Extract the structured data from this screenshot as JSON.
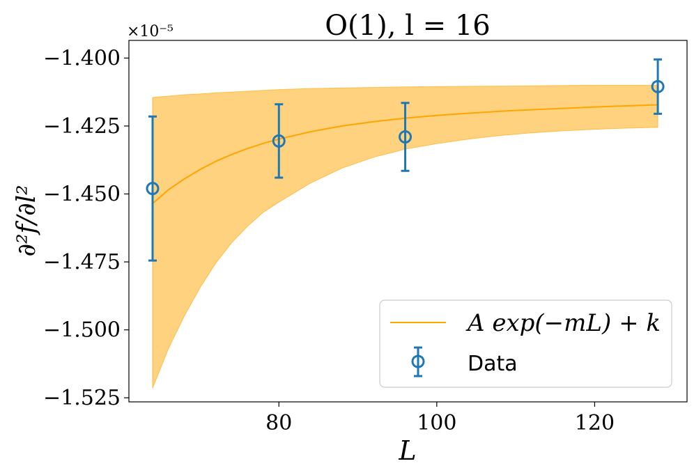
{
  "chart_data": {
    "type": "line",
    "title": "O(1), l = 16",
    "xlabel": "L",
    "ylabel": "∂²f/∂l²",
    "offset_text": "×10⁻⁵",
    "xlim": [
      61.0,
      131.7
    ],
    "ylim": [
      -1.5265,
      -1.3935
    ],
    "xticks": [
      80,
      100,
      120
    ],
    "xtick_labels": [
      "80",
      "100",
      "120"
    ],
    "yticks": [
      -1.4,
      -1.425,
      -1.45,
      -1.475,
      -1.5,
      -1.525
    ],
    "ytick_labels": [
      "−1.400",
      "−1.425",
      "−1.450",
      "−1.475",
      "−1.500",
      "−1.525"
    ],
    "legend_position": "lower-right",
    "series": [
      {
        "name": "A exp(−mL) + k",
        "kind": "fit",
        "color": "#ffa500",
        "x": [
          64,
          66,
          68,
          70,
          72,
          74,
          76,
          78,
          80,
          84,
          88,
          92,
          96,
          100,
          104,
          108,
          112,
          116,
          120,
          124,
          128
        ],
        "y": [
          -1.4535,
          -1.4485,
          -1.4445,
          -1.441,
          -1.438,
          -1.4355,
          -1.4333,
          -1.4314,
          -1.4298,
          -1.4271,
          -1.425,
          -1.4234,
          -1.4221,
          -1.4211,
          -1.4203,
          -1.4196,
          -1.419,
          -1.4185,
          -1.418,
          -1.4176,
          -1.4172
        ],
        "band_lower": [
          -1.5215,
          -1.507,
          -1.495,
          -1.4845,
          -1.4755,
          -1.468,
          -1.462,
          -1.4568,
          -1.453,
          -1.446,
          -1.4405,
          -1.4365,
          -1.4335,
          -1.4315,
          -1.4298,
          -1.4285,
          -1.4275,
          -1.4268,
          -1.4262,
          -1.4258,
          -1.4255
        ],
        "band_upper": [
          -1.4145,
          -1.414,
          -1.4135,
          -1.4132,
          -1.4128,
          -1.4125,
          -1.4122,
          -1.4119,
          -1.4116,
          -1.4112,
          -1.411,
          -1.4108,
          -1.4106,
          -1.4105,
          -1.4104,
          -1.4103,
          -1.4102,
          -1.4101,
          -1.41,
          -1.41,
          -1.41
        ]
      },
      {
        "name": "Data",
        "kind": "errorbar",
        "color": "#1f77b4",
        "x": [
          64,
          80,
          96,
          128
        ],
        "y": [
          -1.448,
          -1.4305,
          -1.429,
          -1.4105
        ],
        "yerr": [
          0.0265,
          0.0135,
          0.0125,
          0.01
        ]
      }
    ]
  }
}
